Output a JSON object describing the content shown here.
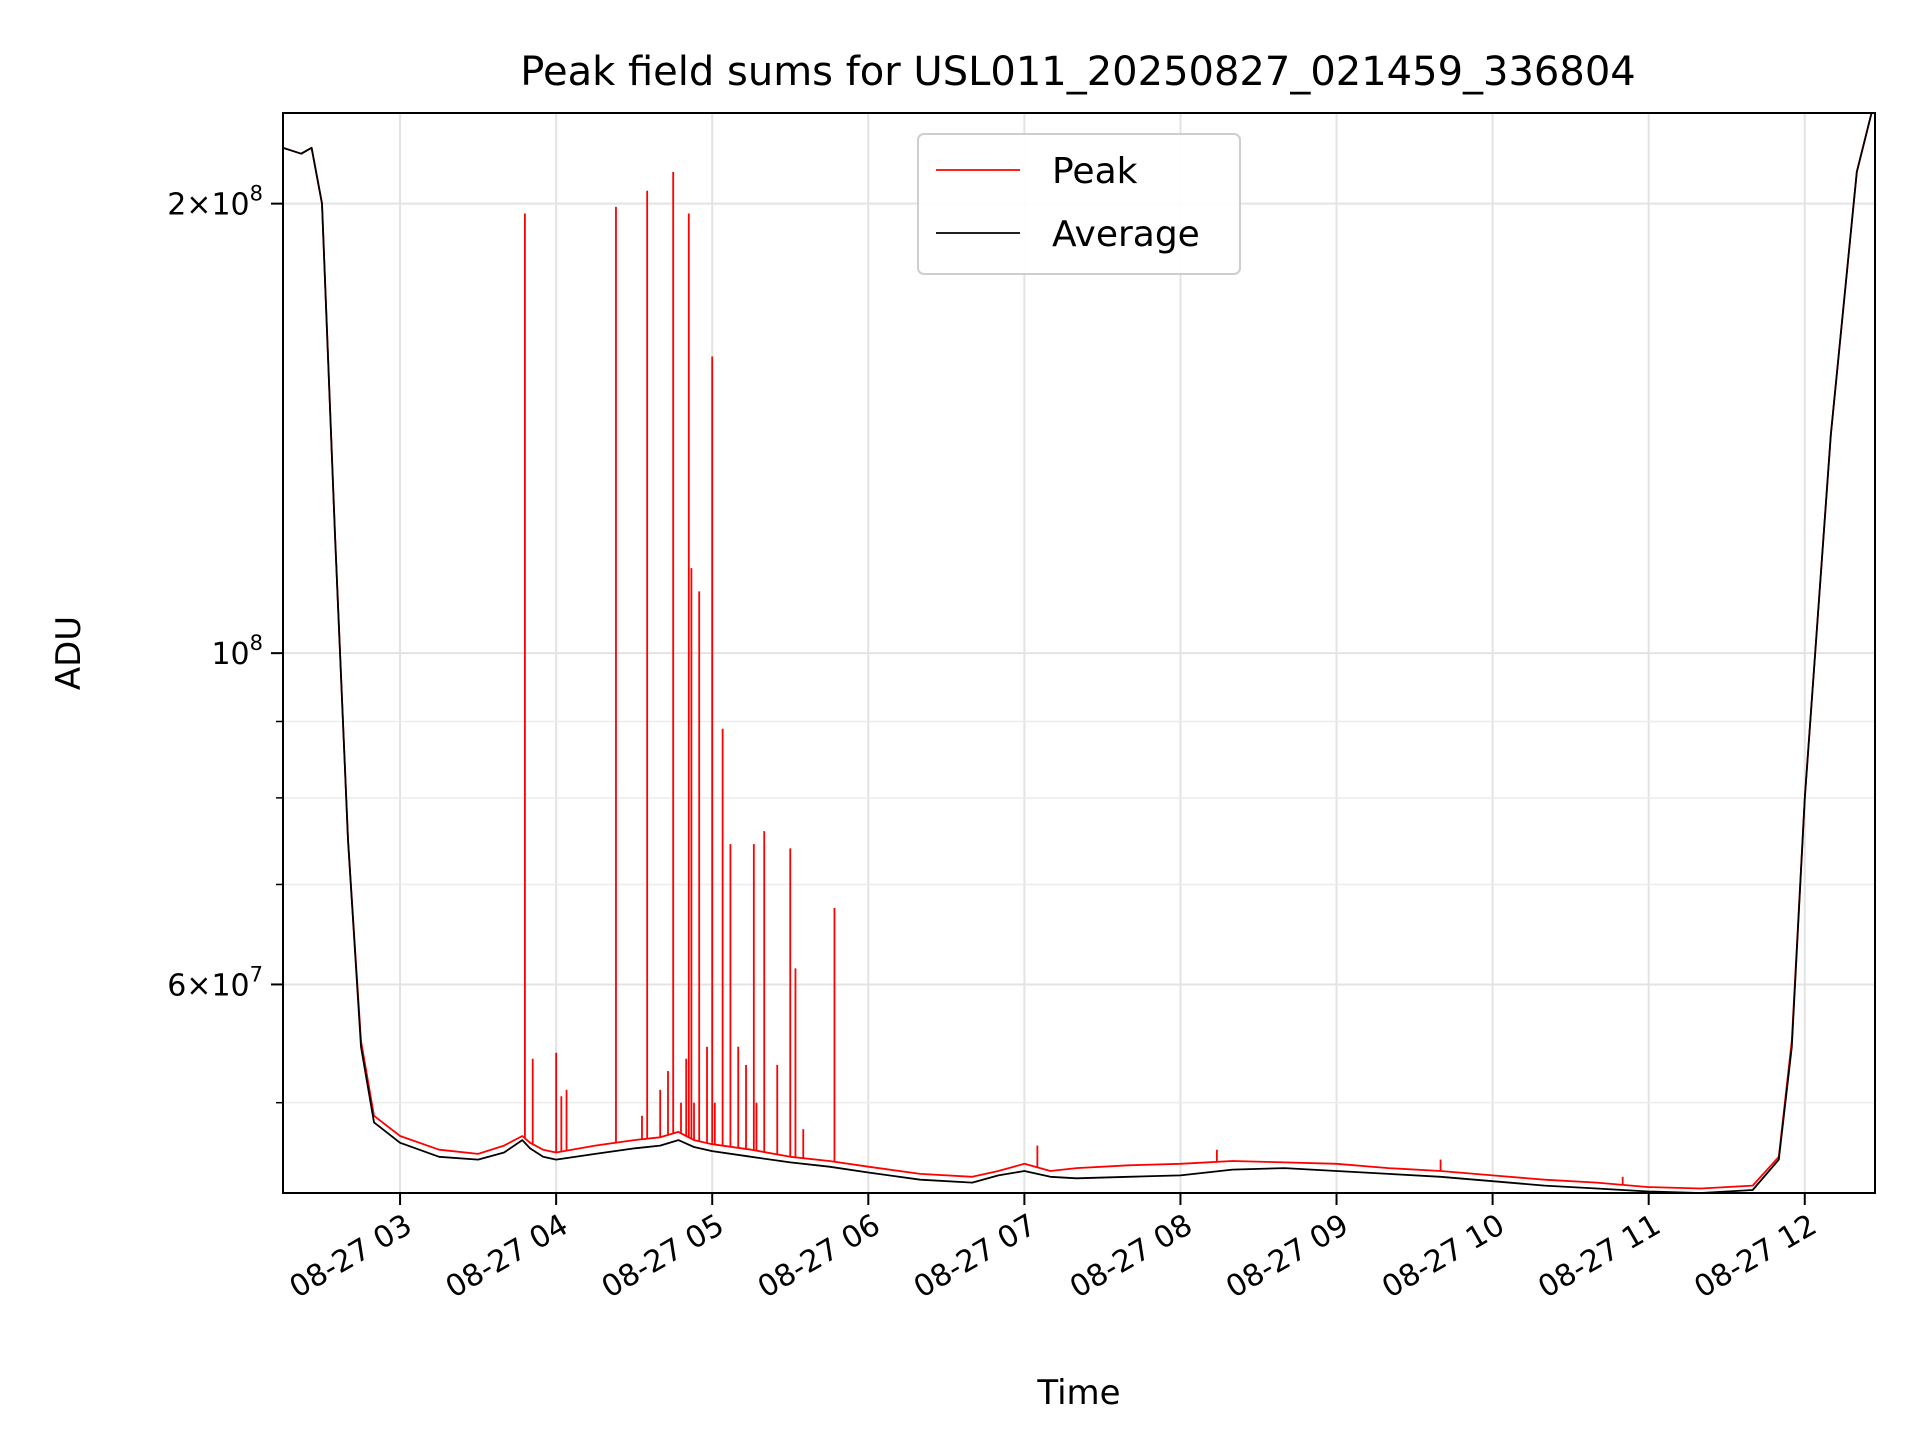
{
  "chart_data": {
    "type": "line",
    "title": "Peak field sums for USL011_20250827_021459_336804",
    "xlabel": "Time",
    "ylabel": "ADU",
    "y_scale": "log",
    "grid": true,
    "legend_position": "top-center",
    "xlim": [
      "2025-08-27 02:15",
      "2025-08-27 12:27"
    ],
    "ylim": [
      43500000,
      230000000
    ],
    "x_ticks": [
      "08-27 03",
      "08-27 04",
      "08-27 05",
      "08-27 06",
      "08-27 07",
      "08-27 08",
      "08-27 09",
      "08-27 10",
      "08-27 11",
      "08-27 12"
    ],
    "y_ticks": [
      {
        "value": 200000000,
        "base": "2",
        "exp": "8"
      },
      {
        "value": 100000000,
        "base": "",
        "exp": "8"
      },
      {
        "value": 60000000,
        "base": "6",
        "exp": "7"
      }
    ],
    "series": [
      {
        "name": "Peak",
        "color": "#ff0000",
        "x": [
          "02:15",
          "02:22",
          "02:26",
          "02:30",
          "02:35",
          "02:40",
          "02:45",
          "02:50",
          "03:00",
          "03:15",
          "03:30",
          "03:40",
          "03:47",
          "03:50",
          "03:55",
          "04:00",
          "04:15",
          "04:30",
          "04:40",
          "04:47",
          "04:53",
          "05:00",
          "05:15",
          "05:30",
          "05:45",
          "06:00",
          "06:20",
          "06:40",
          "06:50",
          "07:00",
          "07:10",
          "07:20",
          "07:40",
          "08:00",
          "08:20",
          "08:40",
          "09:00",
          "09:20",
          "09:40",
          "10:00",
          "10:20",
          "10:40",
          "11:00",
          "11:20",
          "11:40",
          "11:50",
          "11:55",
          "12:00",
          "12:10",
          "12:20",
          "12:27"
        ],
        "y": [
          218000000,
          216000000,
          218000000,
          200000000,
          120000000,
          75000000,
          55000000,
          49000000,
          47500000,
          46500000,
          46200000,
          46800000,
          47500000,
          47000000,
          46500000,
          46300000,
          46800000,
          47200000,
          47400000,
          47800000,
          47200000,
          46900000,
          46500000,
          46000000,
          45700000,
          45300000,
          44800000,
          44600000,
          45000000,
          45500000,
          45000000,
          45200000,
          45400000,
          45500000,
          45700000,
          45600000,
          45500000,
          45200000,
          45000000,
          44700000,
          44400000,
          44200000,
          43900000,
          43800000,
          44000000,
          46000000,
          55000000,
          80000000,
          140000000,
          210000000,
          235000000
        ],
        "spikes": [
          {
            "x": "03:48",
            "y": 197000000
          },
          {
            "x": "03:51",
            "y": 53500000
          },
          {
            "x": "04:00",
            "y": 54000000
          },
          {
            "x": "04:02",
            "y": 50500000
          },
          {
            "x": "04:04",
            "y": 51000000
          },
          {
            "x": "04:23",
            "y": 199000000
          },
          {
            "x": "04:33",
            "y": 49000000
          },
          {
            "x": "04:35",
            "y": 204000000
          },
          {
            "x": "04:40",
            "y": 51000000
          },
          {
            "x": "04:43",
            "y": 52500000
          },
          {
            "x": "04:45",
            "y": 210000000
          },
          {
            "x": "04:48",
            "y": 50000000
          },
          {
            "x": "04:50",
            "y": 53500000
          },
          {
            "x": "04:51",
            "y": 197000000
          },
          {
            "x": "04:52",
            "y": 114000000
          },
          {
            "x": "04:53",
            "y": 50000000
          },
          {
            "x": "04:55",
            "y": 110000000
          },
          {
            "x": "04:58",
            "y": 54500000
          },
          {
            "x": "05:00",
            "y": 158000000
          },
          {
            "x": "05:01",
            "y": 50000000
          },
          {
            "x": "05:04",
            "y": 89000000
          },
          {
            "x": "05:07",
            "y": 74500000
          },
          {
            "x": "05:10",
            "y": 54500000
          },
          {
            "x": "05:13",
            "y": 53000000
          },
          {
            "x": "05:16",
            "y": 74500000
          },
          {
            "x": "05:17",
            "y": 50000000
          },
          {
            "x": "05:20",
            "y": 76000000
          },
          {
            "x": "05:25",
            "y": 53000000
          },
          {
            "x": "05:30",
            "y": 74000000
          },
          {
            "x": "05:32",
            "y": 61500000
          },
          {
            "x": "05:35",
            "y": 48000000
          },
          {
            "x": "05:47",
            "y": 67500000
          },
          {
            "x": "07:05",
            "y": 46800000
          },
          {
            "x": "08:14",
            "y": 46500000
          },
          {
            "x": "09:40",
            "y": 45800000
          },
          {
            "x": "10:50",
            "y": 44600000
          }
        ]
      },
      {
        "name": "Average",
        "color": "#000000",
        "x": [
          "02:15",
          "02:22",
          "02:26",
          "02:30",
          "02:35",
          "02:40",
          "02:45",
          "02:50",
          "03:00",
          "03:15",
          "03:30",
          "03:40",
          "03:47",
          "03:50",
          "03:55",
          "04:00",
          "04:15",
          "04:30",
          "04:40",
          "04:47",
          "04:53",
          "05:00",
          "05:15",
          "05:30",
          "05:45",
          "06:00",
          "06:20",
          "06:40",
          "06:50",
          "07:00",
          "07:10",
          "07:20",
          "07:40",
          "08:00",
          "08:20",
          "08:40",
          "09:00",
          "09:20",
          "09:40",
          "10:00",
          "10:20",
          "10:40",
          "11:00",
          "11:20",
          "11:40",
          "11:50",
          "11:55",
          "12:00",
          "12:10",
          "12:20",
          "12:27"
        ],
        "y": [
          218000000,
          216000000,
          218000000,
          200000000,
          120000000,
          75000000,
          54500000,
          48500000,
          47000000,
          46000000,
          45800000,
          46300000,
          47200000,
          46600000,
          46000000,
          45800000,
          46200000,
          46600000,
          46800000,
          47200000,
          46700000,
          46400000,
          46000000,
          45600000,
          45300000,
          44900000,
          44400000,
          44200000,
          44700000,
          45000000,
          44600000,
          44500000,
          44600000,
          44700000,
          45100000,
          45200000,
          45000000,
          44800000,
          44600000,
          44300000,
          44000000,
          43800000,
          43600000,
          43500000,
          43700000,
          45800000,
          54500000,
          80000000,
          140000000,
          210000000,
          235000000
        ]
      }
    ]
  }
}
